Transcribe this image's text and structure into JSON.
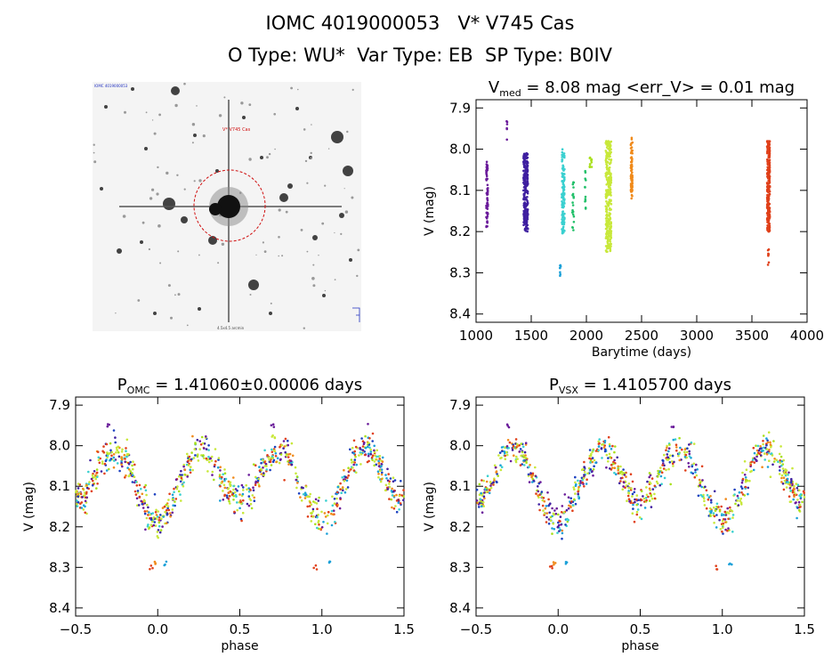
{
  "header": {
    "line1": "IOMC 4019000053   V* V745 Cas",
    "line2": "O Type: WU*  Var Type: EB  SP Type: B0IV"
  },
  "finder_chart": {
    "target_label": "V* V745 Cas",
    "corner_label": "IOMC 4019000053",
    "bottom_label": "4.5x4.5 arcmin"
  },
  "colors": {
    "series": [
      "#6a1b9a",
      "#3f1fa0",
      "#1a3fbf",
      "#1aa0d8",
      "#3ad0d0",
      "#22c06a",
      "#a8e01a",
      "#c8e83a",
      "#f08a1a",
      "#e0401a"
    ],
    "circle": "#d01010"
  },
  "chart_data": [
    {
      "id": "lightcurve",
      "type": "scatter",
      "title_prefix": "V",
      "title_sub": "med",
      "title_rest": " = 8.08 mag <err_V> = 0.01 mag",
      "xlabel": "Barytime (days)",
      "ylabel": "V (mag)",
      "xlim": [
        1000,
        4000
      ],
      "ylim": [
        8.42,
        7.88
      ],
      "xticks": [
        "1000",
        "1500",
        "2000",
        "2500",
        "3000",
        "3500",
        "4000"
      ],
      "yticks": [
        "7.9",
        "8.0",
        "8.1",
        "8.2",
        "8.3",
        "8.4"
      ],
      "clusters": [
        {
          "x": 1100,
          "dx": 15,
          "ymin": 8.03,
          "ymax": 8.19,
          "n": 60,
          "c": 0
        },
        {
          "x": 1280,
          "dx": 6,
          "ymin": 7.93,
          "ymax": 7.98,
          "n": 6,
          "c": 0
        },
        {
          "x": 1450,
          "dx": 40,
          "ymin": 8.01,
          "ymax": 8.2,
          "n": 250,
          "c": 1
        },
        {
          "x": 1760,
          "dx": 15,
          "ymin": 8.28,
          "ymax": 8.31,
          "n": 8,
          "c": 3
        },
        {
          "x": 1790,
          "dx": 25,
          "ymin": 8.0,
          "ymax": 8.21,
          "n": 120,
          "c": 4
        },
        {
          "x": 1880,
          "dx": 15,
          "ymin": 8.08,
          "ymax": 8.2,
          "n": 20,
          "c": 5
        },
        {
          "x": 1990,
          "dx": 10,
          "ymin": 8.05,
          "ymax": 8.15,
          "n": 12,
          "c": 5
        },
        {
          "x": 2040,
          "dx": 20,
          "ymin": 8.02,
          "ymax": 8.05,
          "n": 12,
          "c": 6
        },
        {
          "x": 2200,
          "dx": 50,
          "ymin": 7.98,
          "ymax": 8.25,
          "n": 300,
          "c": 7
        },
        {
          "x": 2410,
          "dx": 15,
          "ymin": 7.97,
          "ymax": 8.12,
          "n": 70,
          "c": 8
        },
        {
          "x": 3650,
          "dx": 25,
          "ymin": 7.98,
          "ymax": 8.2,
          "n": 250,
          "c": 9
        },
        {
          "x": 3650,
          "dx": 10,
          "ymin": 8.24,
          "ymax": 8.3,
          "n": 8,
          "c": 9
        }
      ]
    },
    {
      "id": "phase_omc",
      "type": "scatter",
      "title_prefix": "P",
      "title_sub": "OMC",
      "title_rest": " = 1.41060±0.00006 days",
      "xlabel": "phase",
      "ylabel": "V (mag)",
      "xlim": [
        -0.5,
        1.5
      ],
      "ylim": [
        8.42,
        7.88
      ],
      "xticks": [
        "−0.5",
        "0.0",
        "0.5",
        "1.0",
        "1.5"
      ],
      "yticks": [
        "7.9",
        "8.0",
        "8.1",
        "8.2",
        "8.3",
        "8.4"
      ],
      "model": {
        "mean": 8.085,
        "amp1": 0.075,
        "amp2": 0.025,
        "scatter": 0.04
      },
      "extra_points": [
        {
          "x": -0.04,
          "y": 8.3,
          "c": 9
        },
        {
          "x": -0.02,
          "y": 8.29,
          "c": 8
        },
        {
          "x": 0.05,
          "y": 8.29,
          "c": 3
        },
        {
          "x": 0.96,
          "y": 8.3,
          "c": 9
        },
        {
          "x": 1.05,
          "y": 8.29,
          "c": 3
        },
        {
          "x": -0.3,
          "y": 7.95,
          "c": 0
        },
        {
          "x": 0.7,
          "y": 7.95,
          "c": 0
        }
      ]
    },
    {
      "id": "phase_vsx",
      "type": "scatter",
      "title_prefix": "P",
      "title_sub": "VSX",
      "title_rest": " = 1.4105700 days",
      "xlabel": "phase",
      "ylabel": "V (mag)",
      "xlim": [
        -0.5,
        1.5
      ],
      "ylim": [
        8.42,
        7.88
      ],
      "xticks": [
        "−0.5",
        "0.0",
        "0.5",
        "1.0",
        "1.5"
      ],
      "yticks": [
        "7.9",
        "8.0",
        "8.1",
        "8.2",
        "8.3",
        "8.4"
      ],
      "model": {
        "mean": 8.085,
        "amp1": 0.075,
        "amp2": 0.025,
        "scatter": 0.04
      },
      "extra_points": [
        {
          "x": -0.04,
          "y": 8.3,
          "c": 9
        },
        {
          "x": -0.02,
          "y": 8.29,
          "c": 8
        },
        {
          "x": 0.05,
          "y": 8.29,
          "c": 3
        },
        {
          "x": 0.96,
          "y": 8.3,
          "c": 9
        },
        {
          "x": 1.05,
          "y": 8.29,
          "c": 3
        },
        {
          "x": -0.3,
          "y": 7.95,
          "c": 0
        },
        {
          "x": 0.7,
          "y": 7.95,
          "c": 0
        }
      ]
    }
  ]
}
